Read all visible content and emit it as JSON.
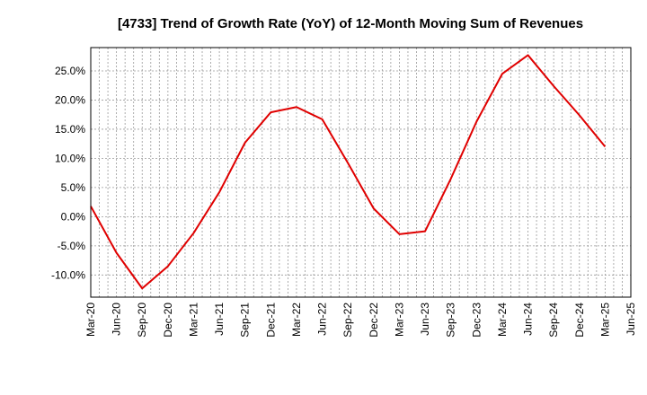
{
  "chart_data": {
    "type": "line",
    "title": "[4733]  Trend of Growth Rate (YoY) of 12-Month Moving Sum of Revenues",
    "xlabel": "",
    "ylabel": "",
    "x": [
      "Mar-20",
      "Jun-20",
      "Sep-20",
      "Dec-20",
      "Mar-21",
      "Jun-21",
      "Sep-21",
      "Dec-21",
      "Mar-22",
      "Jun-22",
      "Sep-22",
      "Dec-22",
      "Mar-23",
      "Jun-23",
      "Sep-23",
      "Dec-23",
      "Mar-24",
      "Jun-24",
      "Sep-24",
      "Dec-24",
      "Mar-25",
      "Jun-25"
    ],
    "series": [
      {
        "name": "",
        "color": "#e00000",
        "values": [
          1.8,
          -6.2,
          -12.3,
          -8.5,
          -2.8,
          4.2,
          12.7,
          17.9,
          18.8,
          16.7,
          9.2,
          1.4,
          -3.0,
          -2.5,
          6.5,
          16.3,
          24.5,
          27.7,
          22.4,
          17.4,
          12.0,
          null
        ]
      }
    ],
    "ylim": [
      -13.8,
      29.0
    ],
    "yticks": [
      -10,
      -5,
      0,
      5,
      10,
      15,
      20,
      25
    ],
    "ytick_labels": [
      "-10.0%",
      "-5.0%",
      "0.0%",
      "5.0%",
      "10.0%",
      "15.0%",
      "20.0%",
      "25.0%"
    ],
    "grid": true,
    "legend": "none",
    "colors": {
      "line": "#e00000",
      "grid": "#999999",
      "axis": "#000000"
    }
  }
}
